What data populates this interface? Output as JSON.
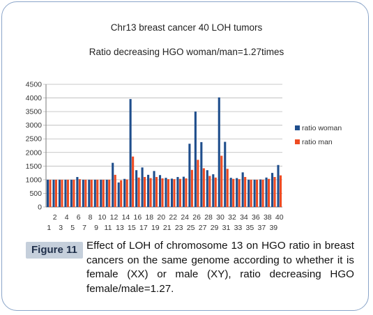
{
  "chart_data": {
    "type": "bar",
    "title": "Chr13 breast cancer 40 LOH tumors",
    "subtitle": "Ratio decreasing HGO woman/man=1.27times",
    "categories": [
      "1",
      "2",
      "3",
      "4",
      "5",
      "6",
      "7",
      "8",
      "9",
      "10",
      "11",
      "12",
      "13",
      "14",
      "15",
      "16",
      "17",
      "18",
      "19",
      "20",
      "21",
      "22",
      "23",
      "24",
      "25",
      "26",
      "27",
      "28",
      "29",
      "30",
      "31",
      "32",
      "33",
      "34",
      "35",
      "36",
      "37",
      "38",
      "39",
      "40"
    ],
    "series": [
      {
        "name": "ratio woman",
        "color": "#1f4e8c",
        "values": [
          1000,
          1000,
          1000,
          1000,
          1000,
          1100,
          1000,
          1000,
          1000,
          1000,
          1000,
          1620,
          900,
          1030,
          3960,
          1350,
          1450,
          1180,
          1320,
          1170,
          1070,
          1040,
          1100,
          1110,
          2320,
          3500,
          2380,
          1350,
          1200,
          4020,
          2390,
          1070,
          1060,
          1270,
          1000,
          1000,
          1010,
          1080,
          1250,
          1540
        ]
      },
      {
        "name": "ratio man",
        "color": "#ee4b22",
        "values": [
          1000,
          1000,
          1000,
          1000,
          1000,
          1020,
          1000,
          1000,
          1000,
          1000,
          1000,
          1180,
          980,
          1010,
          1850,
          1080,
          1100,
          1060,
          1100,
          1050,
          1020,
          1020,
          1030,
          1050,
          1360,
          1730,
          1420,
          1140,
          1080,
          1880,
          1400,
          1030,
          1020,
          1100,
          1000,
          1000,
          1000,
          1030,
          1100,
          1160
        ]
      }
    ],
    "ylim": [
      0,
      4500
    ],
    "yticks": [
      0,
      500,
      1000,
      1500,
      2000,
      2500,
      3000,
      3500,
      4000,
      4500
    ],
    "x_tick_labels_top": [
      "2",
      "4",
      "6",
      "8",
      "10",
      "12",
      "14",
      "16",
      "18",
      "20",
      "22",
      "24",
      "26",
      "28",
      "30",
      "32",
      "34",
      "36",
      "38",
      "40"
    ],
    "x_tick_labels_bottom": [
      "1",
      "3",
      "5",
      "7",
      "9",
      "11",
      "13",
      "15",
      "17",
      "19",
      "21",
      "23",
      "25",
      "27",
      "29",
      "31",
      "33",
      "35",
      "37",
      "39"
    ],
    "grid": true,
    "legend_position": "right"
  },
  "caption": {
    "label": "Figure 11",
    "text": "Effect of LOH of chromosome 13 on HGO ratio in breast cancers on the same genome according to whether it is female (XX) or male (XY), ratio decreasing HGO female/male=1.27."
  }
}
